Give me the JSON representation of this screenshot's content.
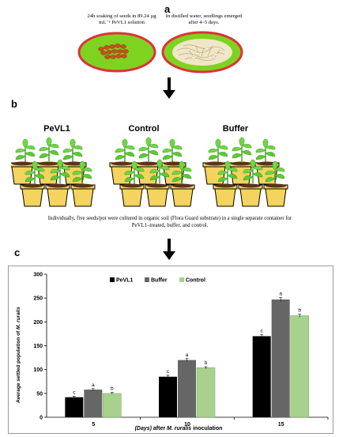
{
  "panels": {
    "a": {
      "letter": "a",
      "caption_left": "24h soaking of seeds in 89.24 µg mL⁻¹  PeVL1 solution",
      "caption_right": "In distilled water, seedlings emerged after 4–5 days."
    },
    "b": {
      "letter": "b",
      "groups": [
        "PeVL1",
        "Control",
        "Buffer"
      ],
      "caption": "Individually,  five seeds/pot were cultured in organic soil (Flora Guard substrate) in a single separate container for PeVL1–treated, buffer, and control."
    },
    "c": {
      "letter": "c"
    }
  },
  "colors": {
    "dish_fill": "#7ed321",
    "dish_rim": "#e0303a",
    "pot": "#f4d35e",
    "leaf": "#5cc936",
    "soil": "#5a3413",
    "pevl1": "#000000",
    "buffer": "#666666",
    "control": "#a9d18e"
  },
  "chart_data": {
    "type": "bar",
    "categories": [
      "5",
      "10",
      "15"
    ],
    "series": [
      {
        "name": "PeVL1",
        "values": [
          42,
          85,
          170
        ],
        "errors": [
          2,
          3,
          3
        ],
        "letters": [
          "c",
          "c",
          "c"
        ]
      },
      {
        "name": "Buffer",
        "values": [
          58,
          120,
          247
        ],
        "errors": [
          2,
          3,
          4
        ],
        "letters": [
          "a",
          "a",
          "a"
        ]
      },
      {
        "name": "Control",
        "values": [
          50,
          104,
          213
        ],
        "errors": [
          2,
          2,
          3
        ],
        "letters": [
          "b",
          "b",
          "b"
        ]
      }
    ],
    "ylim": [
      0,
      300
    ],
    "yticks": [
      0,
      50,
      100,
      150,
      200,
      250,
      300
    ],
    "ylabel": "Average settled population of M. ruralis",
    "xlabel": "(Days) after M. ruralis  inoculation",
    "legend": "top-center",
    "grid": false
  }
}
